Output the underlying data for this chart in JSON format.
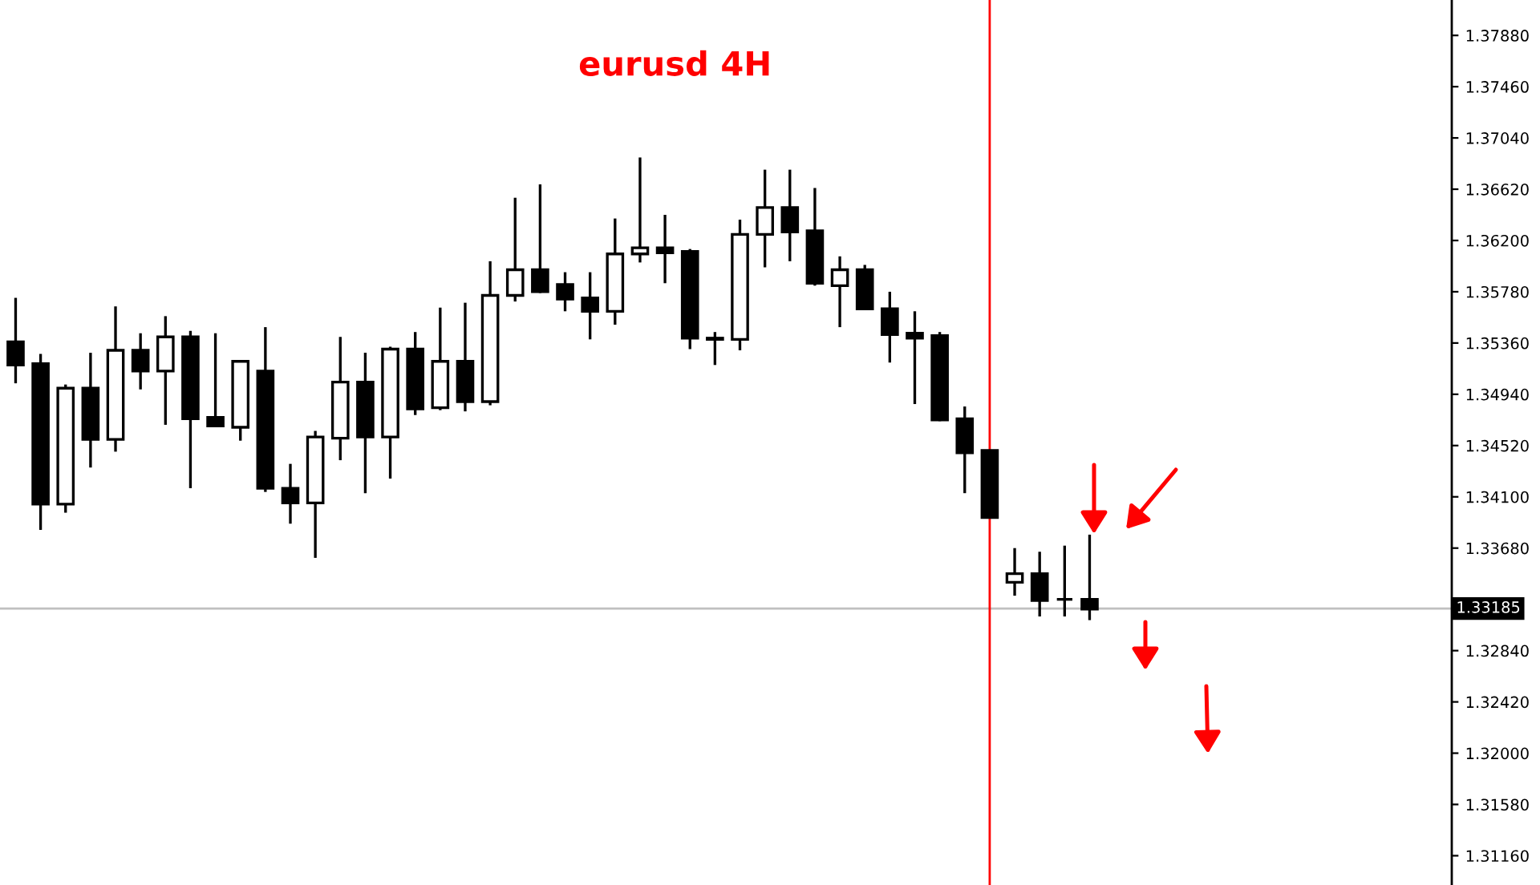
{
  "chart_data": {
    "type": "candlestick",
    "title": "eurusd 4H",
    "categories": [
      null,
      null,
      null,
      null,
      null,
      null,
      null,
      null,
      null,
      null,
      null,
      null,
      null,
      null,
      null,
      null,
      null,
      null,
      null,
      null,
      null,
      null,
      null,
      null,
      null,
      null,
      null,
      null,
      null,
      null,
      null,
      null,
      null,
      null,
      null,
      null,
      null,
      null,
      null,
      null,
      null,
      null,
      null,
      null,
      null,
      null,
      null,
      null,
      null,
      null,
      null,
      null,
      null,
      null,
      null,
      null,
      null,
      null
    ],
    "ohlc": [
      [
        1.3537,
        1.3573,
        1.3503,
        1.3518
      ],
      [
        1.3519,
        1.3527,
        1.3383,
        1.3404
      ],
      [
        1.3404,
        1.3502,
        1.3397,
        1.3499
      ],
      [
        1.3499,
        1.3528,
        1.3434,
        1.3457
      ],
      [
        1.3457,
        1.3566,
        1.3447,
        1.353
      ],
      [
        1.353,
        1.3544,
        1.3498,
        1.3513
      ],
      [
        1.3513,
        1.3558,
        1.3469,
        1.3541
      ],
      [
        1.3541,
        1.3546,
        1.3417,
        1.3474
      ],
      [
        1.3475,
        1.3544,
        1.3467,
        1.3468
      ],
      [
        1.3467,
        1.3521,
        1.3456,
        1.3521
      ],
      [
        1.3513,
        1.3549,
        1.3414,
        1.3417
      ],
      [
        1.3417,
        1.3437,
        1.3388,
        1.3405
      ],
      [
        1.3405,
        1.3464,
        1.336,
        1.3459
      ],
      [
        1.3458,
        1.3541,
        1.344,
        1.3504
      ],
      [
        1.3504,
        1.3528,
        1.3413,
        1.3459
      ],
      [
        1.3459,
        1.3533,
        1.3425,
        1.3531
      ],
      [
        1.3531,
        1.3545,
        1.3477,
        1.3482
      ],
      [
        1.3483,
        1.3565,
        1.3481,
        1.3521
      ],
      [
        1.3521,
        1.3569,
        1.348,
        1.3488
      ],
      [
        1.3488,
        1.3603,
        1.3485,
        1.3575
      ],
      [
        1.3575,
        1.3655,
        1.357,
        1.3596
      ],
      [
        1.3596,
        1.3666,
        1.3577,
        1.3578
      ],
      [
        1.3584,
        1.3594,
        1.3562,
        1.3572
      ],
      [
        1.3573,
        1.3594,
        1.3539,
        1.3562
      ],
      [
        1.3562,
        1.3638,
        1.3551,
        1.3609
      ],
      [
        1.3609,
        1.3688,
        1.3602,
        1.3614
      ],
      [
        1.3614,
        1.3641,
        1.3585,
        1.361
      ],
      [
        1.3611,
        1.3613,
        1.3531,
        1.354
      ],
      [
        1.3539,
        1.3545,
        1.3518,
        1.354
      ],
      [
        1.3539,
        1.3637,
        1.353,
        1.3625
      ],
      [
        1.3625,
        1.3678,
        1.3598,
        1.3647
      ],
      [
        1.3647,
        1.3678,
        1.3603,
        1.3627
      ],
      [
        1.3628,
        1.3663,
        1.3583,
        1.3585
      ],
      [
        1.3583,
        1.3607,
        1.3549,
        1.3596
      ],
      [
        1.3596,
        1.36,
        1.3563,
        1.3564
      ],
      [
        1.3564,
        1.3578,
        1.352,
        1.3543
      ],
      [
        1.3544,
        1.3562,
        1.3486,
        1.354
      ],
      [
        1.3542,
        1.3545,
        1.3472,
        1.3473
      ],
      [
        1.3474,
        1.3484,
        1.3413,
        1.3446
      ],
      [
        1.3448,
        1.3448,
        1.3393,
        1.3393
      ],
      [
        1.334,
        1.3368,
        1.3329,
        1.3347
      ],
      [
        1.3347,
        1.3365,
        1.3312,
        1.3325
      ],
      [
        1.3326,
        1.337,
        1.3312,
        1.3326
      ],
      [
        1.3326,
        1.3379,
        1.3309,
        1.3318
      ],
      null,
      null,
      null,
      null,
      null,
      null,
      null,
      null,
      null,
      null,
      null,
      null,
      null,
      null
    ],
    "ylim": [
      1.3092,
      1.3817
    ],
    "yticks": [
      {
        "value": 1.3788,
        "label": "1.37880"
      },
      {
        "value": 1.3746,
        "label": "1.37460"
      },
      {
        "value": 1.3704,
        "label": "1.37040"
      },
      {
        "value": 1.3662,
        "label": "1.36620"
      },
      {
        "value": 1.362,
        "label": "1.36200"
      },
      {
        "value": 1.3578,
        "label": "1.35780"
      },
      {
        "value": 1.3536,
        "label": "1.35360"
      },
      {
        "value": 1.3494,
        "label": "1.34940"
      },
      {
        "value": 1.3452,
        "label": "1.34520"
      },
      {
        "value": 1.341,
        "label": "1.34100"
      },
      {
        "value": 1.3368,
        "label": "1.33680"
      },
      {
        "value": 1.3326,
        "label": null
      },
      {
        "value": 1.3284,
        "label": "1.32840"
      },
      {
        "value": 1.3242,
        "label": "1.32420"
      },
      {
        "value": 1.32,
        "label": "1.32000"
      },
      {
        "value": 1.3158,
        "label": "1.31580"
      },
      {
        "value": 1.3116,
        "label": "1.31160"
      }
    ],
    "ref_lines": [
      {
        "axis": "y",
        "value": 1.33185,
        "label": "1.33185",
        "color": "#c0c0c0"
      }
    ],
    "tick_labels": "y",
    "grid": false,
    "legend": false
  }
}
